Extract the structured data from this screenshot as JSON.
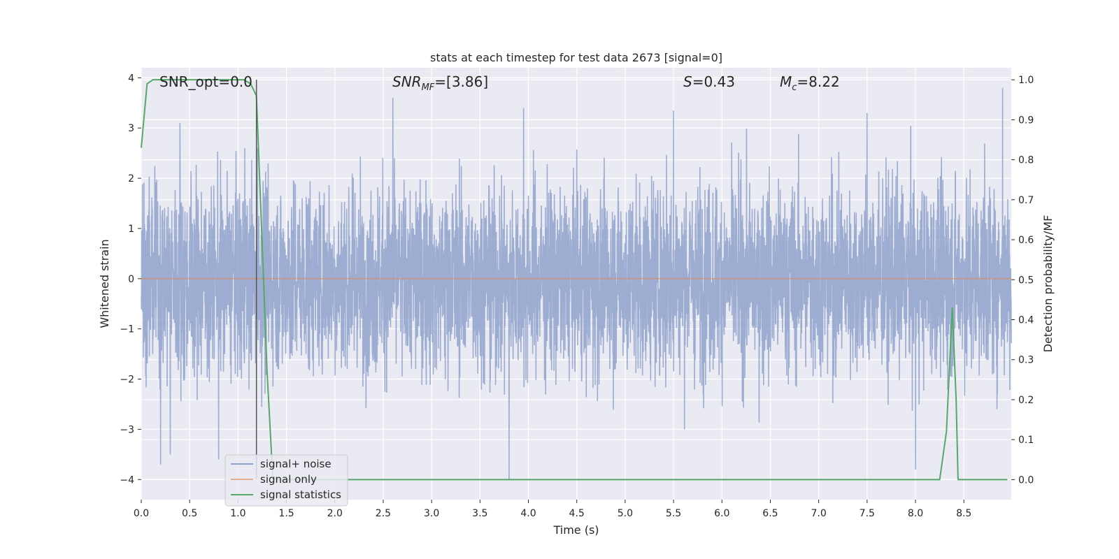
{
  "chart_data": {
    "type": "line",
    "title": "stats at each timestep for test data 2673 [signal=0]",
    "xlabel": "Time (s)",
    "ylabel": "Whitened strain",
    "y2label": "Detection probability/MF",
    "xlim": [
      0,
      8.99
    ],
    "ylim": [
      -4.4,
      4.2
    ],
    "y2lim": [
      -0.05,
      1.03
    ],
    "x_ticks": [
      0.0,
      0.5,
      1.0,
      1.5,
      2.0,
      2.5,
      3.0,
      3.5,
      4.0,
      4.5,
      5.0,
      5.5,
      6.0,
      6.5,
      7.0,
      7.5,
      8.0,
      8.5
    ],
    "x_tick_labels": [
      "0.0",
      "0.5",
      "1.0",
      "1.5",
      "2.0",
      "2.5",
      "3.0",
      "3.5",
      "4.0",
      "4.5",
      "5.0",
      "5.5",
      "6.0",
      "6.5",
      "7.0",
      "7.5",
      "8.0",
      "8.5"
    ],
    "y_ticks": [
      -4,
      -3,
      -2,
      -1,
      0,
      1,
      2,
      3,
      4
    ],
    "y_tick_labels": [
      "−4",
      "−3",
      "−2",
      "−1",
      "0",
      "1",
      "2",
      "3",
      "4"
    ],
    "y2_ticks": [
      0.0,
      0.1,
      0.2,
      0.3,
      0.4,
      0.5,
      0.6,
      0.7,
      0.8,
      0.9,
      1.0
    ],
    "y2_tick_labels": [
      "0.0",
      "0.1",
      "0.2",
      "0.3",
      "0.4",
      "0.5",
      "0.6",
      "0.7",
      "0.8",
      "0.9",
      "1.0"
    ],
    "grid": true,
    "legend_position": "lower-left",
    "annotations": [
      {
        "id": "snr-opt",
        "prefix": "SNR_opt=0.0",
        "sub": "",
        "suffix": ""
      },
      {
        "id": "snr-mf",
        "prefix": "SNR",
        "sub": "MF",
        "suffix": "=[3.86]"
      },
      {
        "id": "s-value",
        "prefix": "S",
        "sub": "",
        "suffix": "=0.43"
      },
      {
        "id": "mc-value",
        "prefix": "M",
        "sub": "c",
        "suffix": "=8.22"
      }
    ],
    "marker_line_x": 1.19,
    "series": [
      {
        "name": "signal+ noise",
        "axis": "left",
        "color": "#8fa2cc",
        "kind": "noise",
        "sample_count": 4500,
        "std": 0.95,
        "peaks": [
          [
            0.4,
            3.1
          ],
          [
            1.07,
            2.6
          ],
          [
            1.2,
            2.6
          ],
          [
            2.6,
            3.6
          ],
          [
            3.95,
            3.4
          ],
          [
            5.5,
            3.35
          ],
          [
            7.5,
            3.3
          ],
          [
            8.9,
            3.8
          ],
          [
            3.8,
            -4.0
          ],
          [
            0.2,
            -3.7
          ],
          [
            0.3,
            -3.5
          ],
          [
            0.8,
            -3.6
          ],
          [
            8.0,
            -3.8
          ]
        ]
      },
      {
        "name": "signal only",
        "axis": "left",
        "color": "#dd8452",
        "values_x": [
          0,
          8.99
        ],
        "values_y": [
          0,
          0
        ]
      },
      {
        "name": "signal statistics",
        "axis": "right",
        "color": "#55a868",
        "values_x": [
          0.0,
          0.06,
          0.12,
          0.2,
          0.5,
          0.8,
          1.06,
          1.13,
          1.19,
          1.3,
          1.36,
          1.45,
          8.25,
          8.32,
          8.38,
          8.42,
          8.44,
          8.95
        ],
        "values_y": [
          0.83,
          0.99,
          1.0,
          1.0,
          1.0,
          1.0,
          1.0,
          0.99,
          0.96,
          0.27,
          0.0,
          0.0,
          0.0,
          0.12,
          0.43,
          0.2,
          0.0,
          0.0
        ]
      }
    ]
  }
}
